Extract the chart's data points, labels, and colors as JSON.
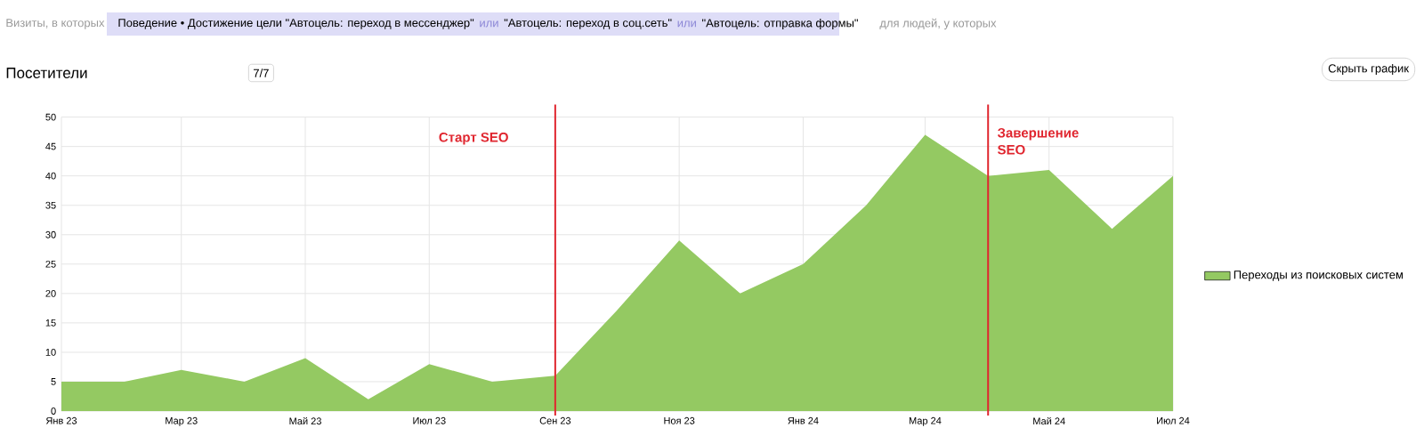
{
  "chart_data": {
    "type": "area",
    "title": "Посетители",
    "x": [
      "2023-01",
      "2023-02",
      "2023-03",
      "2023-04",
      "2023-05",
      "2023-06",
      "2023-07",
      "2023-08",
      "2023-09",
      "2023-10",
      "2023-11",
      "2023-12",
      "2024-01",
      "2024-02",
      "2024-03",
      "2024-04",
      "2024-05",
      "2024-06",
      "2024-07"
    ],
    "series": [
      {
        "name": "Переходы из поисковых систем",
        "color": "#94c962",
        "values": [
          5,
          5,
          7,
          5,
          9,
          2,
          8,
          5,
          6,
          17,
          29,
          20,
          25,
          35,
          47,
          40,
          41,
          31,
          40
        ]
      }
    ],
    "xlim": [
      "2023-01",
      "2024-07"
    ],
    "xticks": [
      {
        "value": "2023-01",
        "label": "Янв 23"
      },
      {
        "value": "2023-03",
        "label": "Мар 23"
      },
      {
        "value": "2023-05",
        "label": "Май 23"
      },
      {
        "value": "2023-07",
        "label": "Июл 23"
      },
      {
        "value": "2023-09",
        "label": "Сен 23"
      },
      {
        "value": "2023-11",
        "label": "Ноя 23"
      },
      {
        "value": "2024-01",
        "label": "Янв 24"
      },
      {
        "value": "2024-03",
        "label": "Мар 24"
      },
      {
        "value": "2024-05",
        "label": "Май 24"
      },
      {
        "value": "2024-07",
        "label": "Июл 24"
      }
    ],
    "ylim": [
      0,
      50
    ],
    "yticks": [
      0,
      5,
      10,
      15,
      20,
      25,
      30,
      35,
      40,
      45,
      50
    ],
    "grid": true,
    "legend": "right",
    "ref_lines": [
      {
        "axis": "x",
        "value": "2023-09",
        "label": "Старт SEO",
        "color": "#e0262f"
      },
      {
        "axis": "x",
        "value": "2024-04",
        "label": "Завершение SEO",
        "color": "#e0262f"
      }
    ],
    "annotations": [
      "Визиты, в которых",
      "Поведение • Достижение цели \"Автоцель: переход в мессенджер\"",
      "или",
      "\"Автоцель: переход в соц.сеть\"",
      "или",
      "\"Автоцель: отправка формы\"",
      "для людей, у которых",
      "7/7",
      "Скрыть график"
    ]
  }
}
